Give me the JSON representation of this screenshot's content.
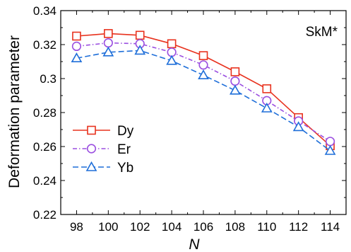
{
  "chart_data": {
    "type": "line",
    "xlabel": "N",
    "ylabel": "Deformation parameter",
    "annotation": "SkM*",
    "x": [
      98,
      100,
      102,
      104,
      106,
      108,
      110,
      112,
      114
    ],
    "x_tick_labels": [
      "98",
      "100",
      "102",
      "104",
      "106",
      "108",
      "110",
      "112",
      "114"
    ],
    "xlim": [
      97,
      115
    ],
    "ylim": [
      0.22,
      0.34
    ],
    "y_ticks": [
      0.22,
      0.24,
      0.26,
      0.28,
      0.3,
      0.32,
      0.34
    ],
    "y_tick_labels": [
      "0.22",
      "0.24",
      "0.26",
      "0.28",
      "0.3",
      "0.32",
      "0.34"
    ],
    "grid": false,
    "legend_position": "bottom-left",
    "series": [
      {
        "name": "Dy",
        "color": "#e8321e",
        "marker": "square",
        "dash": "solid",
        "values": [
          0.325,
          0.3265,
          0.3255,
          0.3205,
          0.3135,
          0.304,
          0.294,
          0.277,
          0.2605
        ]
      },
      {
        "name": "Er",
        "color": "#9b4fe0",
        "marker": "circle",
        "dash": "dashdot",
        "values": [
          0.319,
          0.321,
          0.3205,
          0.3155,
          0.308,
          0.2985,
          0.287,
          0.275,
          0.263
        ]
      },
      {
        "name": "Yb",
        "color": "#1f6fd9",
        "marker": "triangle",
        "dash": "dashed",
        "values": [
          0.312,
          0.3155,
          0.3165,
          0.3105,
          0.302,
          0.293,
          0.2825,
          0.2715,
          0.2575
        ]
      }
    ]
  }
}
